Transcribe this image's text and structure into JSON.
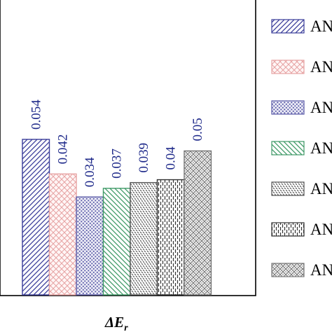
{
  "chart_data": {
    "type": "bar",
    "title": "",
    "xlabel": "",
    "ylabel": "",
    "category": {
      "main": "ΔE",
      "sub": "r"
    },
    "ylim": [
      0,
      0.07
    ],
    "grid": false,
    "legend_position": "right",
    "series": [
      {
        "name": "AN",
        "values": [
          0.054
        ],
        "label": "0.054",
        "color": "#3a3d9a",
        "pattern": "diag-ne"
      },
      {
        "name": "AN",
        "values": [
          0.042
        ],
        "label": "0.042",
        "color": "#e7a3a3",
        "pattern": "crosshatch"
      },
      {
        "name": "AN",
        "values": [
          0.034
        ],
        "label": "0.034",
        "color": "#5b5ba8",
        "pattern": "dots"
      },
      {
        "name": "AN",
        "values": [
          0.037
        ],
        "label": "0.037",
        "color": "#3f9a67",
        "pattern": "diag-nw"
      },
      {
        "name": "AN",
        "values": [
          0.039
        ],
        "label": "0.039",
        "color": "#555555",
        "pattern": "zigzag"
      },
      {
        "name": "AN",
        "values": [
          0.04
        ],
        "label": "0.04",
        "color": "#333333",
        "pattern": "dashed-vertical"
      },
      {
        "name": "AN",
        "values": [
          0.05
        ],
        "label": "0.05",
        "color": "#777777",
        "pattern": "grid"
      }
    ],
    "label_color": "#1f2a8a"
  }
}
